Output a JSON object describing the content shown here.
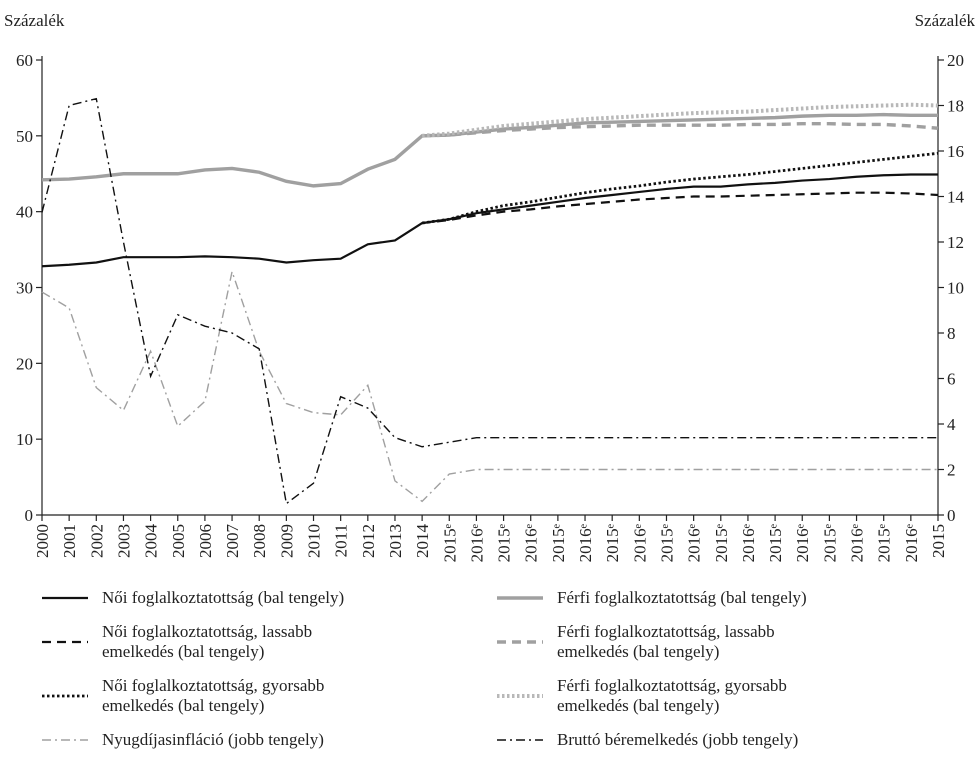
{
  "chart_data": {
    "type": "line",
    "y_label": "Százalék",
    "y2_label": "Százalék",
    "categories": [
      "2000",
      "2001",
      "2002",
      "2003",
      "2004",
      "2005",
      "2006",
      "2007",
      "2008",
      "2009",
      "2010",
      "2011",
      "2012",
      "2013",
      "2014",
      "2015ᵉ",
      "2016ᵉ",
      "2015ᵉ",
      "2016ᵉ",
      "2015ᵉ",
      "2016ᵉ",
      "2015ᵉ",
      "2016ᵉ",
      "2015ᵉ",
      "2016ᵉ",
      "2015ᵉ",
      "2016ᵉ",
      "2015ᵉ",
      "2016ᵉ",
      "2015ᵉ",
      "2016ᵉ",
      "2015ᵉ",
      "2016ᵉ",
      "2015"
    ],
    "ylim": [
      0,
      60
    ],
    "yticks": [
      0,
      10,
      20,
      30,
      40,
      50,
      60
    ],
    "y2lim": [
      0,
      20
    ],
    "y2ticks": [
      0,
      2,
      4,
      6,
      8,
      10,
      12,
      14,
      16,
      18,
      20
    ],
    "grid": false,
    "series": [
      {
        "name": "Női foglalkoztatottság (bal tengely)",
        "color": "#111111",
        "style": "solid",
        "values": [
          32.8,
          33,
          33.3,
          34,
          34,
          34,
          34.1,
          34,
          33.8,
          33.3,
          33.6,
          33.8,
          35.7,
          36.2,
          38.5,
          39,
          39.8,
          40.3,
          40.8,
          41.3,
          41.8,
          42.2,
          42.6,
          43,
          43.3,
          43.3,
          43.6,
          43.8,
          44.1,
          44.3,
          44.6,
          44.8,
          44.9,
          44.9
        ]
      },
      {
        "name": "Női foglalkoztatottság, lassabb\nemelkedés (bal tengely)",
        "color": "#111111",
        "style": "dashed",
        "values": [
          null,
          null,
          null,
          null,
          null,
          null,
          null,
          null,
          null,
          null,
          null,
          null,
          null,
          null,
          38.5,
          38.9,
          39.5,
          40,
          40.3,
          40.7,
          41,
          41.3,
          41.6,
          41.8,
          42,
          42,
          42.1,
          42.2,
          42.3,
          42.4,
          42.5,
          42.5,
          42.4,
          42.2
        ]
      },
      {
        "name": "Női foglalkoztatottság, gyorsabb\nemelkedés (bal tengely)",
        "color": "#111111",
        "style": "dotted",
        "values": [
          null,
          null,
          null,
          null,
          null,
          null,
          null,
          null,
          null,
          null,
          null,
          null,
          null,
          null,
          38.5,
          39,
          40,
          40.8,
          41.3,
          41.9,
          42.5,
          43,
          43.4,
          43.9,
          44.3,
          44.6,
          44.9,
          45.3,
          45.7,
          46.1,
          46.5,
          46.9,
          47.3,
          47.7
        ]
      },
      {
        "name": "Férfi foglalkoztatottság (bal tengely)",
        "color": "#a0a0a0",
        "style": "solid",
        "values": [
          44.2,
          44.3,
          44.6,
          45,
          45,
          45,
          45.5,
          45.7,
          45.2,
          44,
          43.4,
          43.7,
          45.6,
          46.9,
          50,
          50.1,
          50.5,
          50.9,
          51.1,
          51.4,
          51.7,
          51.8,
          51.9,
          52,
          52.1,
          52.2,
          52.3,
          52.4,
          52.6,
          52.7,
          52.7,
          52.8,
          52.7,
          52.7
        ]
      },
      {
        "name": "Férfi foglalkoztatottság, lassabb\nemelkedés (bal tengely)",
        "color": "#a0a0a0",
        "style": "dashed",
        "values": [
          null,
          null,
          null,
          null,
          null,
          null,
          null,
          null,
          null,
          null,
          null,
          null,
          null,
          null,
          50,
          50.1,
          50.4,
          50.7,
          50.9,
          51.1,
          51.2,
          51.3,
          51.4,
          51.4,
          51.4,
          51.4,
          51.5,
          51.5,
          51.6,
          51.6,
          51.5,
          51.5,
          51.3,
          51
        ]
      },
      {
        "name": "Férfi foglalkoztatottság, gyorsabb\nemelkedés (bal tengely)",
        "color": "#b8b8b8",
        "style": "dotted",
        "values": [
          null,
          null,
          null,
          null,
          null,
          null,
          null,
          null,
          null,
          null,
          null,
          null,
          null,
          null,
          50,
          50.3,
          50.8,
          51.3,
          51.6,
          51.9,
          52.2,
          52.4,
          52.6,
          52.8,
          53,
          53.1,
          53.2,
          53.4,
          53.6,
          53.8,
          53.9,
          54,
          54.1,
          54
        ]
      },
      {
        "name": "Nyugdíjasinfláció (jobb tengely)",
        "color": "#a0a0a0",
        "style": "dashdot",
        "axis": "y2",
        "values": [
          9.8,
          9.1,
          5.6,
          4.6,
          7.2,
          3.9,
          5,
          10.7,
          7.2,
          4.9,
          4.5,
          4.4,
          5.7,
          1.5,
          0.6,
          1.8,
          2,
          2,
          2,
          2,
          2,
          2,
          2,
          2,
          2,
          2,
          2,
          2,
          2,
          2,
          2,
          2,
          2,
          2
        ]
      },
      {
        "name": "Bruttó béremelkedés (jobb tengely)",
        "color": "#111111",
        "style": "dashdot",
        "axis": "y2",
        "values": [
          13.3,
          18,
          18.3,
          12,
          6.1,
          8.8,
          8.3,
          8,
          7.3,
          0.5,
          1.4,
          5.2,
          4.7,
          3.4,
          3,
          3.2,
          3.4,
          3.4,
          3.4,
          3.4,
          3.4,
          3.4,
          3.4,
          3.4,
          3.4,
          3.4,
          3.4,
          3.4,
          3.4,
          3.4,
          3.4,
          3.4,
          3.4,
          3.4
        ]
      }
    ]
  }
}
